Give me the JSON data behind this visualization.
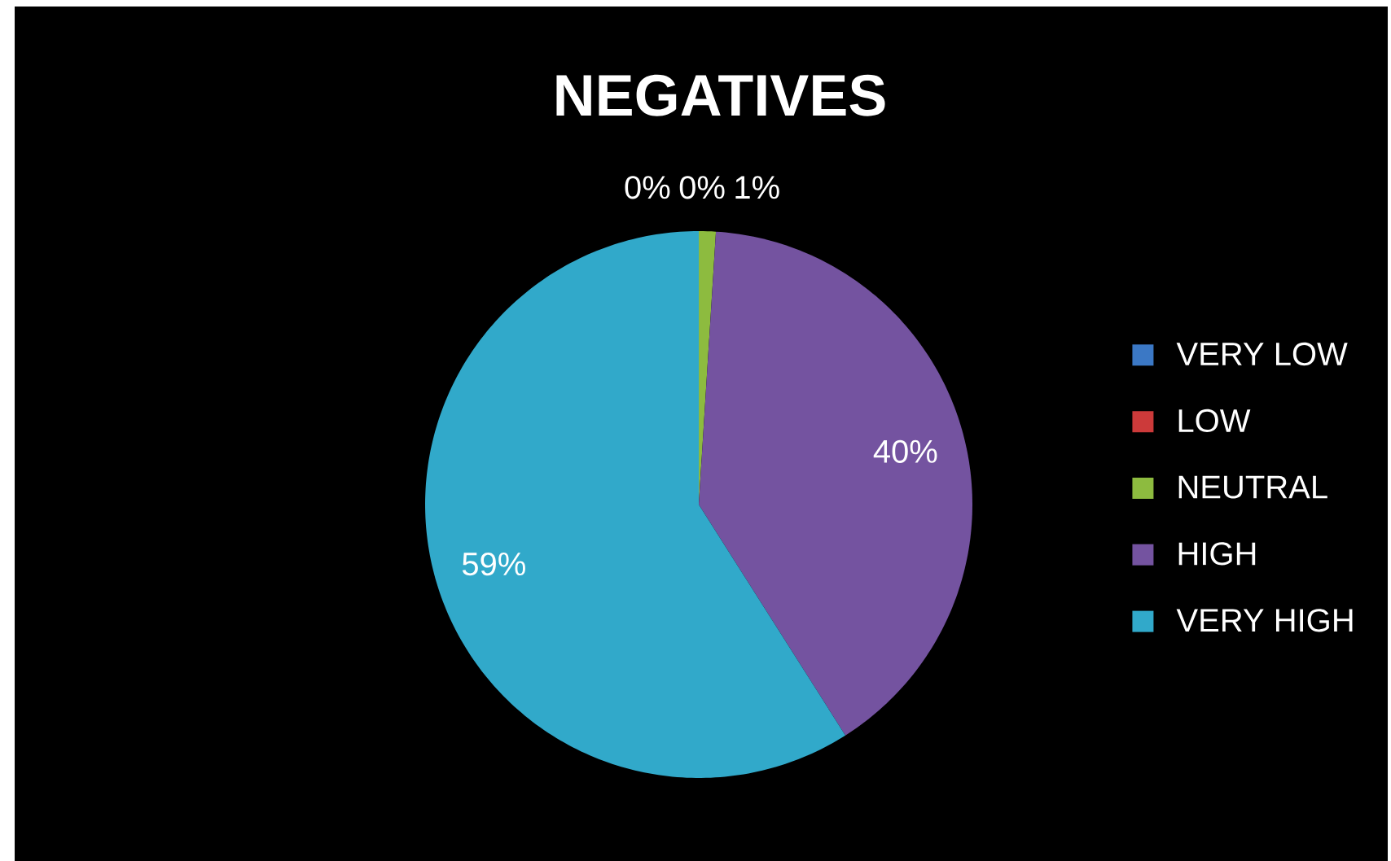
{
  "chart_data": {
    "type": "pie",
    "title": "NEGATIVES",
    "categories": [
      "VERY LOW",
      "LOW",
      "NEUTRAL",
      "HIGH",
      "VERY HIGH"
    ],
    "values": [
      0,
      0,
      1,
      40,
      59
    ],
    "colors": [
      "#3b78c5",
      "#cc3a3a",
      "#8dbb3f",
      "#7453a0",
      "#31a9ca"
    ],
    "value_labels": [
      "0%",
      "0%",
      "1%",
      "40%",
      "59%"
    ],
    "legend": "right"
  }
}
